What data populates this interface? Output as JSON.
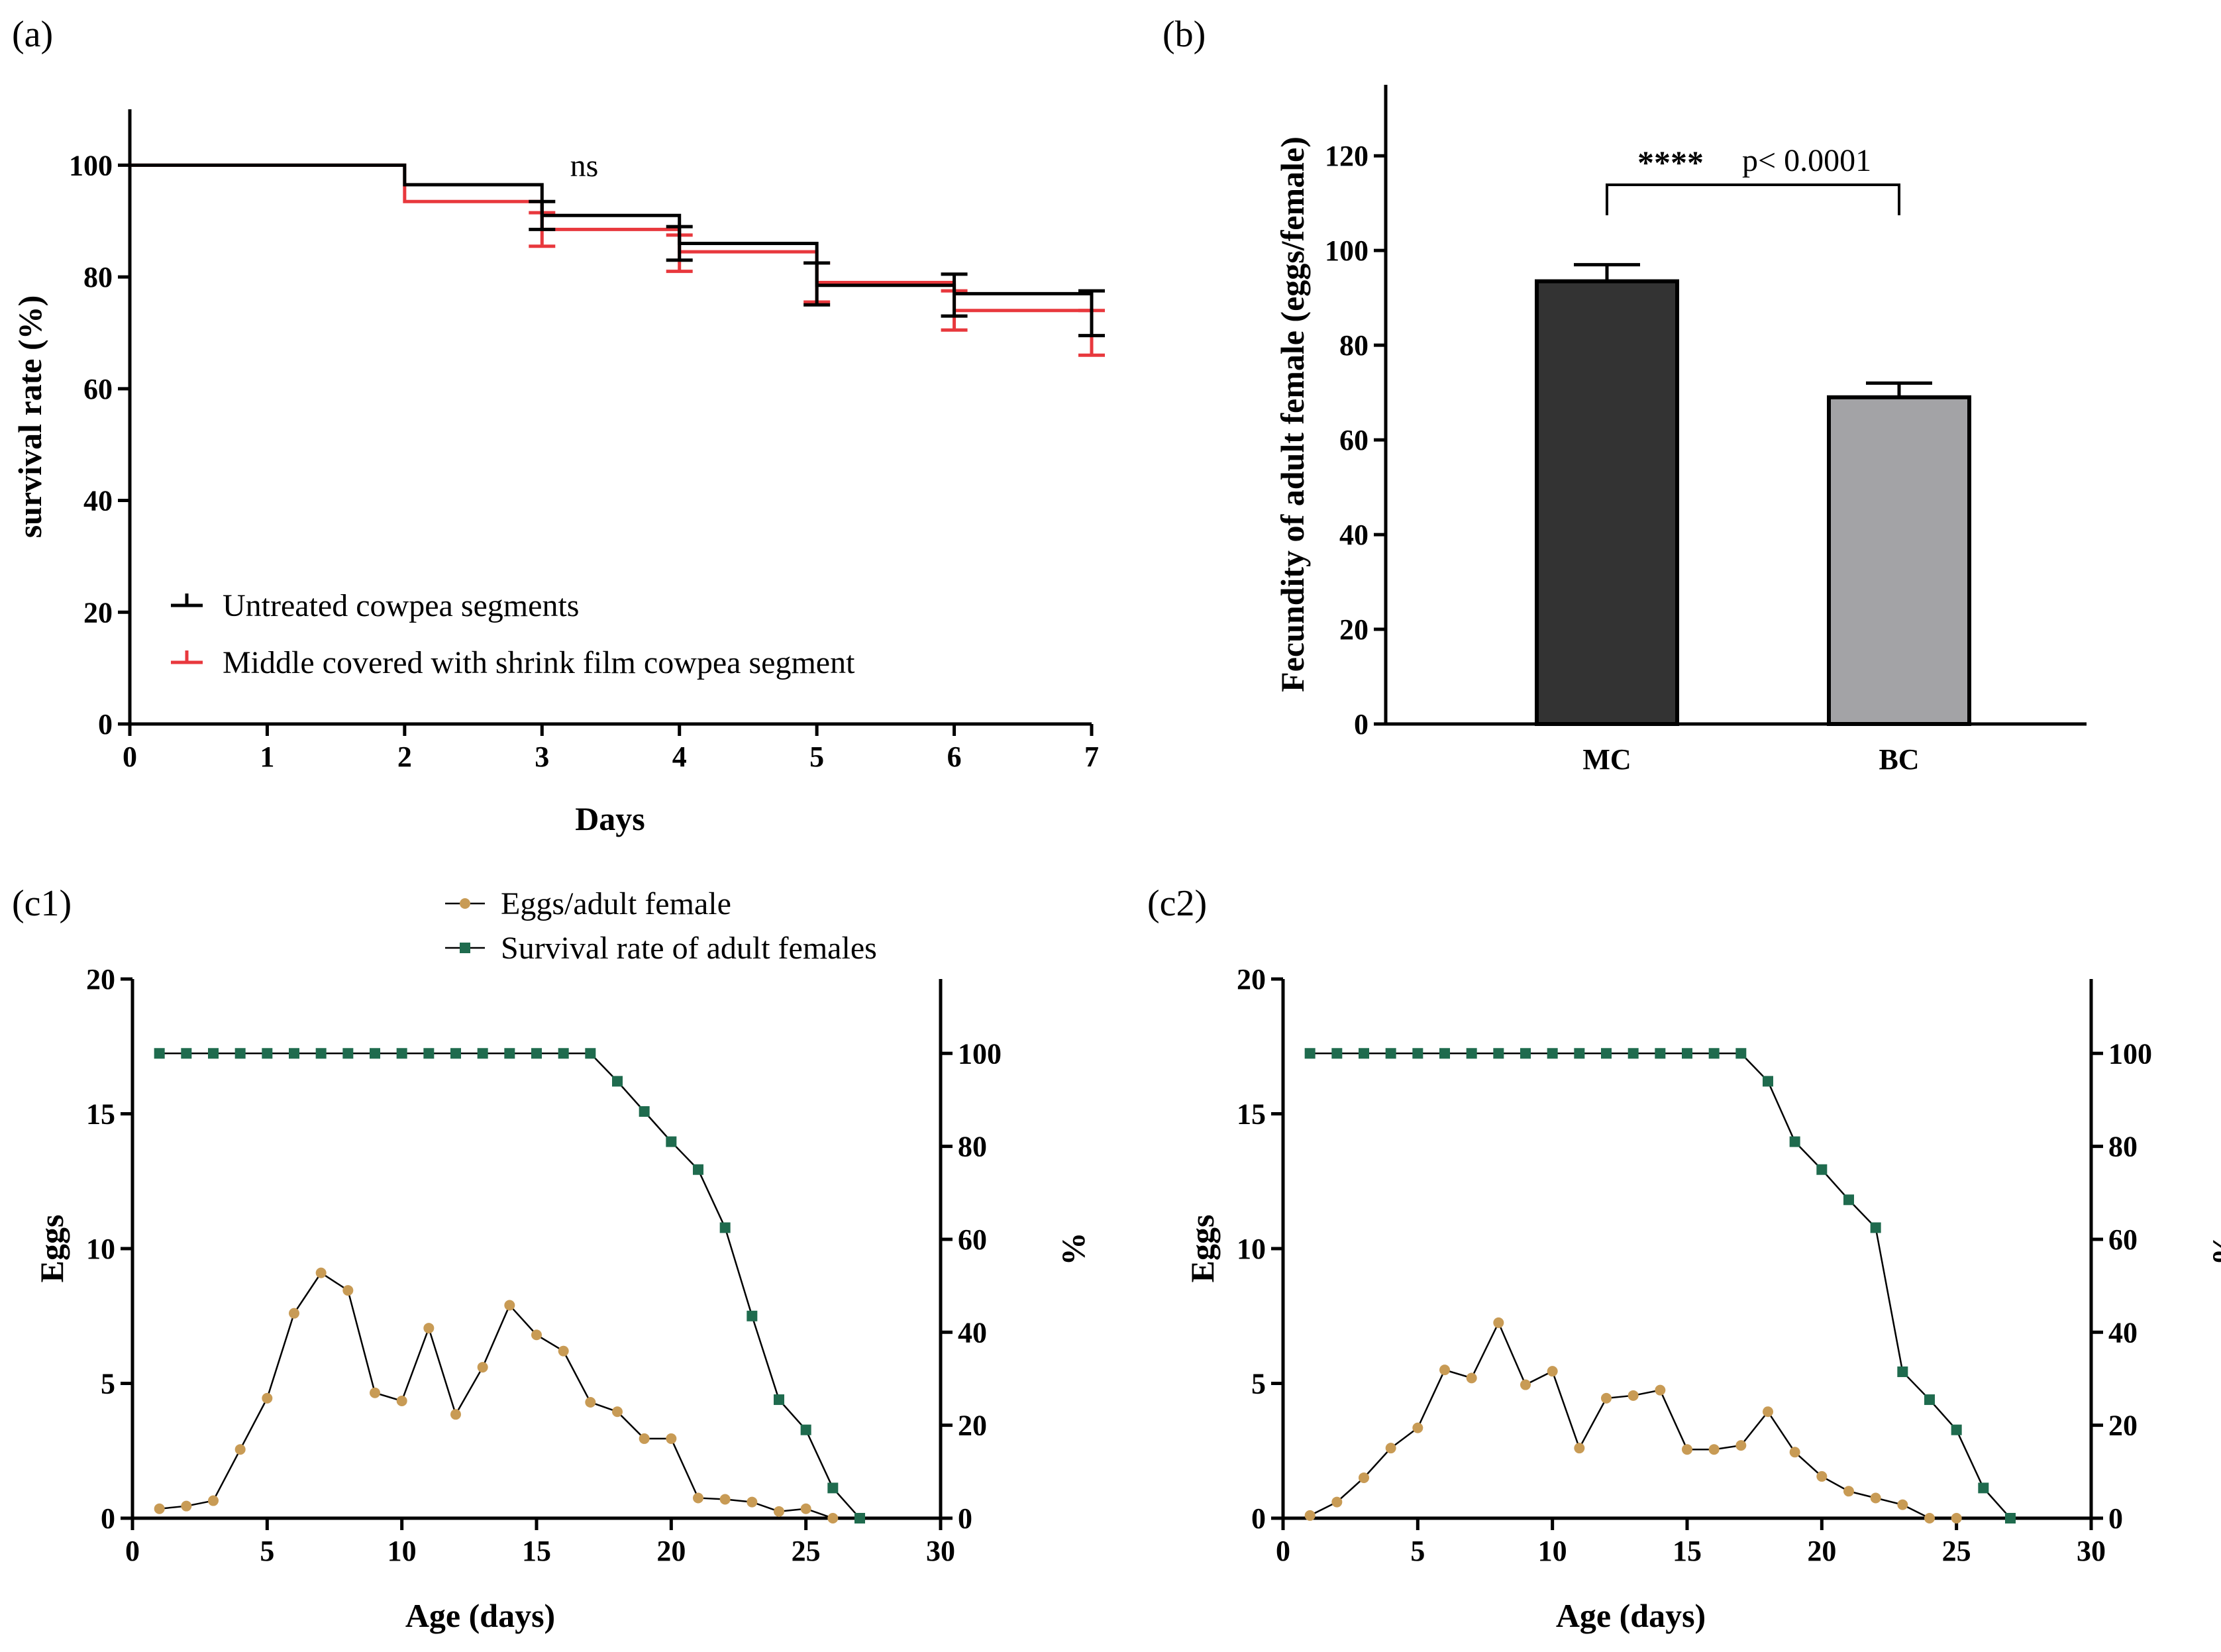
{
  "panels": {
    "a": "(a)",
    "b": "(b)",
    "c1": "(c1)",
    "c2": "(c2)"
  },
  "colors": {
    "untreated": "#000000",
    "treated": "#e8383d",
    "bar_mc": "#333333",
    "bar_bc": "#a3a3a6",
    "eggs": "#c89b55",
    "survival": "#1f6b4e"
  },
  "chart_data": [
    {
      "id": "a",
      "type": "line",
      "step": true,
      "xlabel": "Days",
      "ylabel": "survival rate (%)",
      "xlim": [
        0,
        7
      ],
      "ylim": [
        0,
        110
      ],
      "xticks": [
        "0",
        "1",
        "2",
        "3",
        "4",
        "5",
        "6",
        "7"
      ],
      "yticks": [
        "0",
        "20",
        "40",
        "60",
        "80",
        "100"
      ],
      "annotation": "ns",
      "legend_position": "bottom-left",
      "series": [
        {
          "name": "Untreated cowpea segments",
          "color": "#000000",
          "steps": [
            [
              0,
              100
            ],
            [
              2,
              96.5
            ],
            [
              3,
              91
            ],
            [
              4,
              86
            ],
            [
              5,
              78.5
            ],
            [
              6,
              77
            ],
            [
              7,
              77
            ]
          ],
          "error_bars": [
            {
              "x": 3,
              "low": 88.5,
              "high": 93.5
            },
            {
              "x": 4,
              "low": 83,
              "high": 89
            },
            {
              "x": 5,
              "low": 75,
              "high": 82.5
            },
            {
              "x": 6,
              "low": 73,
              "high": 80.5
            },
            {
              "x": 7,
              "low": 69.5,
              "high": 77.5
            }
          ]
        },
        {
          "name": "Middle covered with shrink film cowpea segment",
          "color": "#e8383d",
          "steps": [
            [
              0,
              100
            ],
            [
              2,
              93.5
            ],
            [
              3,
              88.5
            ],
            [
              4,
              84.5
            ],
            [
              5,
              79
            ],
            [
              6,
              74
            ],
            [
              7,
              74
            ]
          ],
          "error_bars": [
            {
              "x": 3,
              "low": 85.5,
              "high": 91.5
            },
            {
              "x": 4,
              "low": 81,
              "high": 87.5
            },
            {
              "x": 5,
              "low": 75.5,
              "high": 82.5
            },
            {
              "x": 6,
              "low": 70.5,
              "high": 77.5
            },
            {
              "x": 7,
              "low": 66,
              "high": 74
            }
          ]
        }
      ]
    },
    {
      "id": "b",
      "type": "bar",
      "categories": [
        "MC",
        "BC"
      ],
      "values": [
        93.5,
        69
      ],
      "errors": [
        3.5,
        3
      ],
      "ylabel": "Fecundity of adult female (eggs/female)",
      "ylim": [
        0,
        135
      ],
      "yticks": [
        "0",
        "20",
        "40",
        "60",
        "80",
        "100",
        "120"
      ],
      "significance": {
        "stars": "****",
        "text": "p< 0.0001"
      }
    },
    {
      "id": "c1",
      "type": "line",
      "xlabel": "Age (days)",
      "ylabel_left": "Eggs",
      "ylabel_right": "%",
      "xlim": [
        0,
        30
      ],
      "ylim_left": [
        0,
        20
      ],
      "ylim_right": [
        0,
        116
      ],
      "xticks": [
        "0",
        "5",
        "10",
        "15",
        "20",
        "25",
        "30"
      ],
      "yticks_left": [
        "0",
        "5",
        "10",
        "15",
        "20"
      ],
      "yticks_right": [
        "0",
        "20",
        "40",
        "60",
        "80",
        "100"
      ],
      "legend": [
        "Eggs/adult female",
        "Survival rate of adult females"
      ],
      "legend_position": "top-center",
      "series": [
        {
          "name": "Eggs/adult female",
          "axis": "left",
          "x": [
            1,
            2,
            3,
            4,
            5,
            6,
            7,
            8,
            9,
            10,
            11,
            12,
            13,
            14,
            15,
            16,
            17,
            18,
            19,
            20,
            21,
            22,
            23,
            24,
            25,
            26
          ],
          "y": [
            0.35,
            0.45,
            0.65,
            2.55,
            4.45,
            7.6,
            9.1,
            8.45,
            4.65,
            4.35,
            7.05,
            3.85,
            5.6,
            7.9,
            6.8,
            6.2,
            4.3,
            3.95,
            2.95,
            2.95,
            0.75,
            0.7,
            0.6,
            0.25,
            0.35,
            0.0
          ]
        },
        {
          "name": "Survival rate of adult females",
          "axis": "right",
          "x": [
            1,
            2,
            3,
            4,
            5,
            6,
            7,
            8,
            9,
            10,
            11,
            12,
            13,
            14,
            15,
            16,
            17,
            18,
            19,
            20,
            21,
            22,
            23,
            24,
            25,
            26,
            27
          ],
          "y": [
            100,
            100,
            100,
            100,
            100,
            100,
            100,
            100,
            100,
            100,
            100,
            100,
            100,
            100,
            100,
            100,
            100,
            94,
            87.5,
            81,
            75,
            62.5,
            43.5,
            25.5,
            19,
            6.5,
            0
          ]
        }
      ]
    },
    {
      "id": "c2",
      "type": "line",
      "xlabel": "Age (days)",
      "ylabel_left": "Eggs",
      "ylabel_right": "%",
      "xlim": [
        0,
        30
      ],
      "ylim_left": [
        0,
        20
      ],
      "ylim_right": [
        0,
        116
      ],
      "xticks": [
        "0",
        "5",
        "10",
        "15",
        "20",
        "25",
        "30"
      ],
      "yticks_left": [
        "0",
        "5",
        "10",
        "15",
        "20"
      ],
      "yticks_right": [
        "0",
        "20",
        "40",
        "60",
        "80",
        "100"
      ],
      "series": [
        {
          "name": "Eggs/adult female",
          "axis": "left",
          "x": [
            1,
            2,
            3,
            4,
            5,
            6,
            7,
            8,
            9,
            10,
            11,
            12,
            13,
            14,
            15,
            16,
            17,
            18,
            19,
            20,
            21,
            22,
            23,
            24,
            25
          ],
          "y": [
            0.1,
            0.6,
            1.5,
            2.6,
            3.35,
            5.5,
            5.2,
            7.25,
            4.95,
            5.45,
            2.6,
            4.45,
            4.55,
            4.75,
            2.55,
            2.55,
            2.7,
            3.95,
            2.45,
            1.55,
            1.0,
            0.75,
            0.5,
            0.0,
            0.0
          ]
        },
        {
          "name": "Survival rate of adult females",
          "axis": "right",
          "x": [
            1,
            2,
            3,
            4,
            5,
            6,
            7,
            8,
            9,
            10,
            11,
            12,
            13,
            14,
            15,
            16,
            17,
            18,
            19,
            20,
            21,
            22,
            23,
            24,
            25,
            26,
            27
          ],
          "y": [
            100,
            100,
            100,
            100,
            100,
            100,
            100,
            100,
            100,
            100,
            100,
            100,
            100,
            100,
            100,
            100,
            100,
            94,
            81,
            75,
            68.5,
            62.5,
            31.5,
            25.5,
            19,
            6.5,
            0
          ]
        }
      ]
    }
  ]
}
